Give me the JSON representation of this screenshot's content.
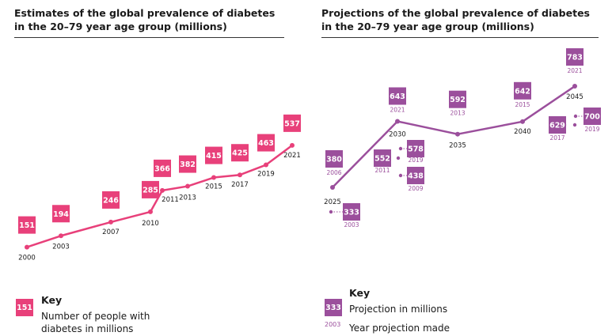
{
  "colors": {
    "pink": "#e8407a",
    "purple": "#9b4f9c"
  },
  "chart_data": [
    {
      "type": "line",
      "title": "Estimates of the global prevalence of diabetes in the 20–79 year age group (millions)",
      "x": [
        "2000",
        "2003",
        "2007",
        "2010",
        "2011",
        "2013",
        "2015",
        "2017",
        "2019",
        "2021"
      ],
      "values": [
        151,
        194,
        246,
        285,
        366,
        382,
        415,
        425,
        463,
        537
      ],
      "key": {
        "title": "Key",
        "sample_value": "151",
        "label": "Number of people with diabetes in millions"
      }
    },
    {
      "type": "line",
      "title": "Projections of the global prevalence of diabetes in the 20–79 year age group (millions)",
      "x": [
        "2025",
        "2030",
        "2035",
        "2040",
        "2045"
      ],
      "values": [
        380,
        643,
        592,
        642,
        783
      ],
      "value_years_made": [
        "2006",
        "2021",
        "2013",
        "2015",
        "2021"
      ],
      "earlier_projections": [
        {
          "target": "2025",
          "value": 333,
          "year_made": "2003"
        },
        {
          "target": "2030",
          "value": 552,
          "year_made": "2011"
        },
        {
          "target": "2030",
          "value": 578,
          "year_made": "2019"
        },
        {
          "target": "2030",
          "value": 438,
          "year_made": "2009"
        },
        {
          "target": "2045",
          "value": 629,
          "year_made": "2017"
        },
        {
          "target": "2045",
          "value": 700,
          "year_made": "2019"
        }
      ],
      "key": {
        "title": "Key",
        "sample_value": "333",
        "sample_year": "2003",
        "label_value": "Projection in millions",
        "label_year": "Year projection made"
      }
    }
  ]
}
